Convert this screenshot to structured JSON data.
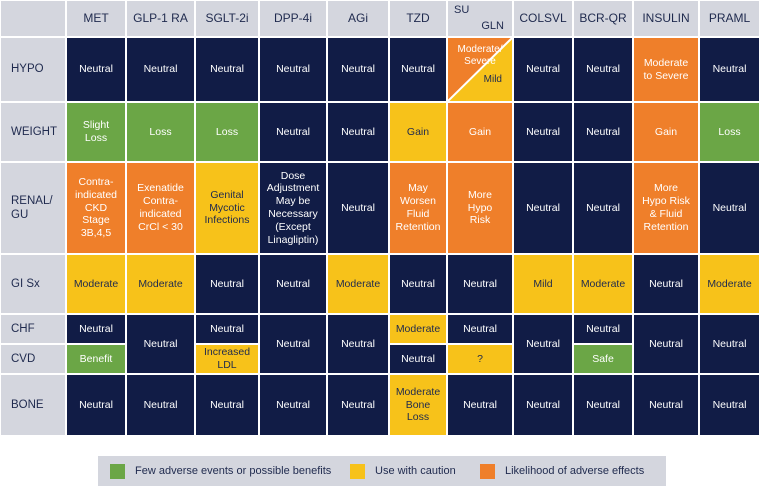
{
  "colors": {
    "neutral": "#111c46",
    "green": "#6ba646",
    "yellow": "#f7c21a",
    "orange": "#ef7f2a",
    "header": "#d4d6de"
  },
  "columns": [
    "MET",
    "GLP-1 RA",
    "SGLT-2i",
    "DPP-4i",
    "AGi",
    "TZD",
    "SU",
    "GLN",
    "COLSVL",
    "BCR-QR",
    "INSULIN",
    "PRAML"
  ],
  "rows": [
    "HYPO",
    "WEIGHT",
    "RENAL/\nGU",
    "GI Sx",
    "CHF",
    "CVD",
    "BONE"
  ],
  "cells": [
    {
      "id": "hypo-met",
      "text": "Neutral",
      "color": "neutral"
    },
    {
      "id": "hypo-glp1",
      "text": "Neutral",
      "color": "neutral"
    },
    {
      "id": "hypo-sglt2",
      "text": "Neutral",
      "color": "neutral"
    },
    {
      "id": "hypo-dpp4",
      "text": "Neutral",
      "color": "neutral"
    },
    {
      "id": "hypo-agi",
      "text": "Neutral",
      "color": "neutral"
    },
    {
      "id": "hypo-tzd",
      "text": "Neutral",
      "color": "neutral"
    },
    {
      "id": "hypo-colsvl",
      "text": "Neutral",
      "color": "neutral"
    },
    {
      "id": "hypo-bcrqr",
      "text": "Neutral",
      "color": "neutral"
    },
    {
      "id": "hypo-insulin",
      "text": "Moderate\nto Severe",
      "color": "orange"
    },
    {
      "id": "hypo-praml",
      "text": "Neutral",
      "color": "neutral"
    },
    {
      "id": "weight-met",
      "text": "Slight\nLoss",
      "color": "green"
    },
    {
      "id": "weight-glp1",
      "text": "Loss",
      "color": "green"
    },
    {
      "id": "weight-sglt2",
      "text": "Loss",
      "color": "green"
    },
    {
      "id": "weight-dpp4",
      "text": "Neutral",
      "color": "neutral"
    },
    {
      "id": "weight-agi",
      "text": "Neutral",
      "color": "neutral"
    },
    {
      "id": "weight-tzd",
      "text": "Gain",
      "color": "yellow"
    },
    {
      "id": "weight-su",
      "text": "Gain",
      "color": "orange"
    },
    {
      "id": "weight-colsvl",
      "text": "Neutral",
      "color": "neutral"
    },
    {
      "id": "weight-bcrqr",
      "text": "Neutral",
      "color": "neutral"
    },
    {
      "id": "weight-insulin",
      "text": "Gain",
      "color": "orange"
    },
    {
      "id": "weight-praml",
      "text": "Loss",
      "color": "green"
    },
    {
      "id": "renal-met",
      "text": "Contra-\nindicated\nCKD\nStage\n3B,4,5",
      "color": "orange"
    },
    {
      "id": "renal-glp1",
      "text": "Exenatide\nContra-\nindicated\nCrCl < 30",
      "color": "orange"
    },
    {
      "id": "renal-sglt2",
      "text": "Genital\nMycotic\nInfections",
      "color": "yellow"
    },
    {
      "id": "renal-dpp4",
      "text": "Dose\nAdjustment\nMay be\nNecessary\n(Except\nLinagliptin)",
      "color": "neutral"
    },
    {
      "id": "renal-agi",
      "text": "Neutral",
      "color": "neutral"
    },
    {
      "id": "renal-tzd",
      "text": "May\nWorsen\nFluid\nRetention",
      "color": "orange"
    },
    {
      "id": "renal-su",
      "text": "More\nHypo\nRisk",
      "color": "orange"
    },
    {
      "id": "renal-colsvl",
      "text": "Neutral",
      "color": "neutral"
    },
    {
      "id": "renal-bcrqr",
      "text": "Neutral",
      "color": "neutral"
    },
    {
      "id": "renal-insulin",
      "text": "More\nHypo Risk\n& Fluid\nRetention",
      "color": "orange"
    },
    {
      "id": "renal-praml",
      "text": "Neutral",
      "color": "neutral"
    },
    {
      "id": "gi-met",
      "text": "Moderate",
      "color": "yellow"
    },
    {
      "id": "gi-glp1",
      "text": "Moderate",
      "color": "yellow"
    },
    {
      "id": "gi-sglt2",
      "text": "Neutral",
      "color": "neutral"
    },
    {
      "id": "gi-dpp4",
      "text": "Neutral",
      "color": "neutral"
    },
    {
      "id": "gi-agi",
      "text": "Moderate",
      "color": "yellow"
    },
    {
      "id": "gi-tzd",
      "text": "Neutral",
      "color": "neutral"
    },
    {
      "id": "gi-su",
      "text": "Neutral",
      "color": "neutral"
    },
    {
      "id": "gi-colsvl",
      "text": "Mild",
      "color": "yellow"
    },
    {
      "id": "gi-bcrqr",
      "text": "Moderate",
      "color": "yellow"
    },
    {
      "id": "gi-insulin",
      "text": "Neutral",
      "color": "neutral"
    },
    {
      "id": "gi-praml",
      "text": "Moderate",
      "color": "yellow"
    },
    {
      "id": "chf-met",
      "text": "Neutral",
      "color": "neutral"
    },
    {
      "id": "cvd-met",
      "text": "Benefit",
      "color": "green"
    },
    {
      "id": "chfcvd-glp1",
      "text": "Neutral",
      "color": "neutral"
    },
    {
      "id": "chf-sglt2",
      "text": "Neutral",
      "color": "neutral"
    },
    {
      "id": "cvd-sglt2",
      "text": "Increased\nLDL",
      "color": "yellow"
    },
    {
      "id": "chfcvd-dpp4",
      "text": "Neutral",
      "color": "neutral"
    },
    {
      "id": "chfcvd-agi",
      "text": "Neutral",
      "color": "neutral"
    },
    {
      "id": "chf-tzd",
      "text": "Moderate",
      "color": "yellow"
    },
    {
      "id": "cvd-tzd",
      "text": "Neutral",
      "color": "neutral"
    },
    {
      "id": "chf-su",
      "text": "Neutral",
      "color": "neutral"
    },
    {
      "id": "cvd-su",
      "text": "?",
      "color": "yellow"
    },
    {
      "id": "chfcvd-colsvl",
      "text": "Neutral",
      "color": "neutral"
    },
    {
      "id": "chf-bcrqr",
      "text": "Neutral",
      "color": "neutral"
    },
    {
      "id": "cvd-bcrqr",
      "text": "Safe",
      "color": "green"
    },
    {
      "id": "chfcvd-insulin",
      "text": "Neutral",
      "color": "neutral"
    },
    {
      "id": "chfcvd-praml",
      "text": "Neutral",
      "color": "neutral"
    },
    {
      "id": "bone-met",
      "text": "Neutral",
      "color": "neutral"
    },
    {
      "id": "bone-glp1",
      "text": "Neutral",
      "color": "neutral"
    },
    {
      "id": "bone-sglt2",
      "text": "Neutral",
      "color": "neutral"
    },
    {
      "id": "bone-dpp4",
      "text": "Neutral",
      "color": "neutral"
    },
    {
      "id": "bone-agi",
      "text": "Neutral",
      "color": "neutral"
    },
    {
      "id": "bone-tzd",
      "text": "Moderate\nBone\nLoss",
      "color": "yellow"
    },
    {
      "id": "bone-su",
      "text": "Neutral",
      "color": "neutral"
    },
    {
      "id": "bone-colsvl",
      "text": "Neutral",
      "color": "neutral"
    },
    {
      "id": "bone-bcrqr",
      "text": "Neutral",
      "color": "neutral"
    },
    {
      "id": "bone-insulin",
      "text": "Neutral",
      "color": "neutral"
    },
    {
      "id": "bone-praml",
      "text": "Neutral",
      "color": "neutral"
    }
  ],
  "split_cell": {
    "upper_text": "Moderate/\nSevere",
    "lower_text": "Mild",
    "upper_color": "orange",
    "lower_color": "yellow"
  },
  "legend": [
    {
      "label": "Few adverse events or possible benefits",
      "color": "green"
    },
    {
      "label": "Use with caution",
      "color": "yellow"
    },
    {
      "label": "Likelihood of adverse effects",
      "color": "orange"
    }
  ]
}
